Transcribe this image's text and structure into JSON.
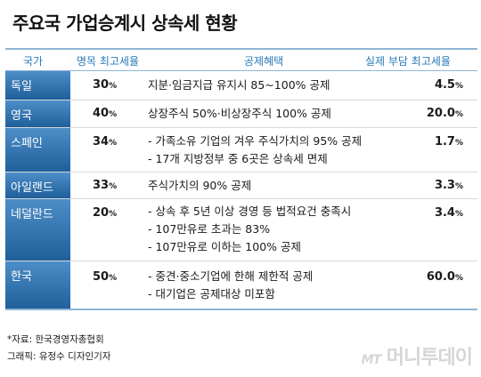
{
  "title": "주요국 가업승계시 상속세 현황",
  "headers": {
    "country": "국가",
    "nominal": "명목 최고세율",
    "benefit": "공제혜택",
    "actual": "실제 부담 최고세율"
  },
  "rows": [
    {
      "country": "독일",
      "rate": "30",
      "benefits": [
        "지분·임금지급 유지시 85~100% 공제"
      ],
      "actual": "4.5"
    },
    {
      "country": "영국",
      "rate": "40",
      "benefits": [
        "상장주식 50%·비상장주식 100% 공제"
      ],
      "actual": "20.0"
    },
    {
      "country": "스페인",
      "rate": "34",
      "benefits": [
        "- 가족소유 기업의 겨우 주식가치의 95% 공제",
        "- 17개 지방정부 중 6곳은 상속세 면제"
      ],
      "actual": "1.7"
    },
    {
      "country": "아일랜드",
      "rate": "33",
      "benefits": [
        "주식가치의 90% 공제"
      ],
      "actual": "3.3"
    },
    {
      "country": "네덜란드",
      "rate": "20",
      "benefits": [
        "- 상속 후 5년 이상 경영 등 법적요건 충족시",
        "- 107만유로 초과는 83%",
        "- 107만유로 이하는 100% 공제"
      ],
      "actual": "3.4"
    },
    {
      "country": "한국",
      "rate": "50",
      "benefits": [
        "- 중견·중소기업에 한해 제한적 공제",
        "- 대기업은 공제대상 미포함"
      ],
      "actual": "60.0"
    }
  ],
  "percent": "%",
  "source": "*자료: 한국경영자총협회",
  "graphic": "그래픽: 유정수 디자인기자",
  "logo": {
    "mt": "MT",
    "name": "머니투데이"
  }
}
